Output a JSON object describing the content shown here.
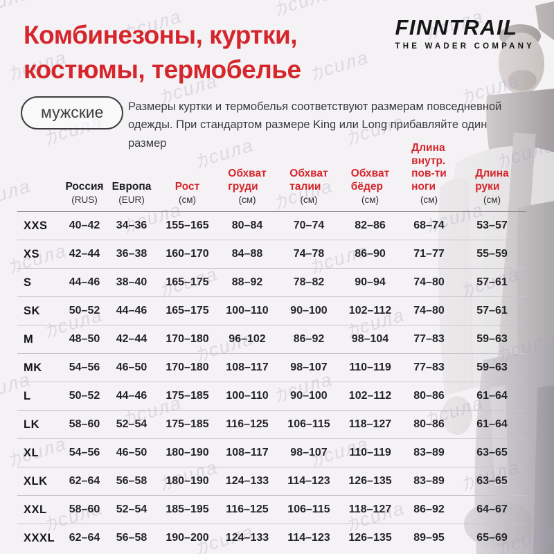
{
  "header": {
    "title": "Комбинезоны, куртки,\nкостюмы, термобелье",
    "logo": {
      "name": "FINNTRAIL",
      "tagline": "THE WADER COMPANY"
    },
    "badge": "мужские",
    "description": "Размеры куртки и термобелья соответствуют размерам повседневной одежды. При стандартом размере King или Long прибавляйте один размер"
  },
  "watermark": {
    "text": "力сила",
    "text_cyrillic": "сила"
  },
  "colors": {
    "accent_red": "#d5262c",
    "text_black": "#1d1d1f",
    "watermark_gray": "#a79fc0",
    "background": "#f4f2f4"
  },
  "table": {
    "columns": [
      {
        "label": "Россия",
        "unit": "(RUS)"
      },
      {
        "label": "Европа",
        "unit": "(EUR)"
      },
      {
        "label": "Рост",
        "unit": "(см)"
      },
      {
        "label": "Обхват\nгруди",
        "unit": "(см)"
      },
      {
        "label": "Обхват\nталии",
        "unit": "(см)"
      },
      {
        "label": "Обхват\nбёдер",
        "unit": "(см)"
      },
      {
        "label": "Длина\nвнутр.\nпов-ти\nноги",
        "unit": "(см)"
      },
      {
        "label": "Длина\nруки",
        "unit": "(см)"
      }
    ],
    "rows": [
      {
        "size": "XXS",
        "values": [
          "40–42",
          "34–36",
          "155–165",
          "80–84",
          "70–74",
          "82–86",
          "68–74",
          "53–57"
        ]
      },
      {
        "size": "XS",
        "values": [
          "42–44",
          "36–38",
          "160–170",
          "84–88",
          "74–78",
          "86–90",
          "71–77",
          "55–59"
        ]
      },
      {
        "size": "S",
        "values": [
          "44–46",
          "38–40",
          "165–175",
          "88–92",
          "78–82",
          "90–94",
          "74–80",
          "57–61"
        ]
      },
      {
        "size": "SK",
        "values": [
          "50–52",
          "44–46",
          "165–175",
          "100–110",
          "90–100",
          "102–112",
          "74–80",
          "57–61"
        ]
      },
      {
        "size": "M",
        "values": [
          "48–50",
          "42–44",
          "170–180",
          "96–102",
          "86–92",
          "98–104",
          "77–83",
          "59–63"
        ]
      },
      {
        "size": "MK",
        "values": [
          "54–56",
          "46–50",
          "170–180",
          "108–117",
          "98–107",
          "110–119",
          "77–83",
          "59–63"
        ]
      },
      {
        "size": "L",
        "values": [
          "50–52",
          "44–46",
          "175–185",
          "100–110",
          "90–100",
          "102–112",
          "80–86",
          "61–64"
        ]
      },
      {
        "size": "LK",
        "values": [
          "58–60",
          "52–54",
          "175–185",
          "116–125",
          "106–115",
          "118–127",
          "80–86",
          "61–64"
        ]
      },
      {
        "size": "XL",
        "values": [
          "54–56",
          "46–50",
          "180–190",
          "108–117",
          "98–107",
          "110–119",
          "83–89",
          "63–65"
        ]
      },
      {
        "size": "XLK",
        "values": [
          "62–64",
          "56–58",
          "180–190",
          "124–133",
          "114–123",
          "126–135",
          "83–89",
          "63–65"
        ]
      },
      {
        "size": "XXL",
        "values": [
          "58–60",
          "52–54",
          "185–195",
          "116–125",
          "106–115",
          "118–127",
          "86–92",
          "64–67"
        ]
      },
      {
        "size": "XXXL",
        "values": [
          "62–64",
          "56–58",
          "190–200",
          "124–133",
          "114–123",
          "126–135",
          "89–95",
          "65–69"
        ]
      }
    ]
  }
}
